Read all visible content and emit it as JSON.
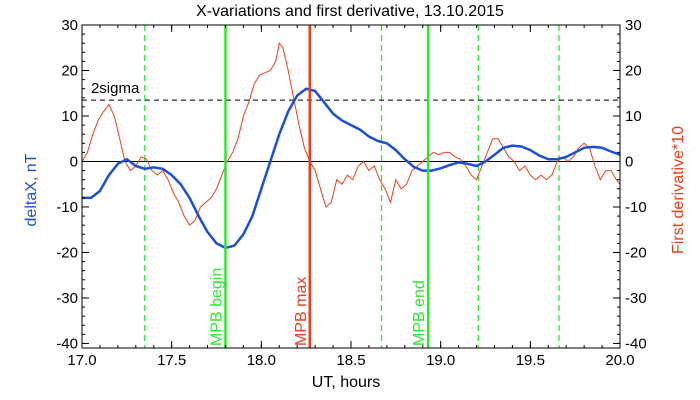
{
  "chart_data": {
    "type": "line",
    "title": "X-variations and first derivative, 13.10.2015",
    "xlabel": "UT, hours",
    "ylabel_left": "deltaX, nT",
    "ylabel_right": "First derivative*10",
    "xlim": [
      17.0,
      20.0
    ],
    "ylim": [
      -41,
      30
    ],
    "xticks": [
      17.0,
      17.5,
      18.0,
      18.5,
      19.0,
      19.5,
      20.0
    ],
    "yticks": [
      30,
      20,
      10,
      0,
      -10,
      -20,
      -30,
      -40
    ],
    "colors": {
      "deltaX": "#1a4fd8",
      "derivative": "#e8401c",
      "green": "#2ee82e",
      "red": "#e8401c",
      "axis": "#000000"
    },
    "series": [
      {
        "key": "deltaX",
        "points": [
          [
            17.0,
            -8
          ],
          [
            17.05,
            -8
          ],
          [
            17.1,
            -6.5
          ],
          [
            17.15,
            -3
          ],
          [
            17.2,
            -0.5
          ],
          [
            17.25,
            0.5
          ],
          [
            17.3,
            -1
          ],
          [
            17.35,
            -1.6
          ],
          [
            17.4,
            -1.3
          ],
          [
            17.45,
            -1.6
          ],
          [
            17.5,
            -3
          ],
          [
            17.55,
            -5
          ],
          [
            17.6,
            -8
          ],
          [
            17.65,
            -12
          ],
          [
            17.7,
            -15.5
          ],
          [
            17.75,
            -18
          ],
          [
            17.8,
            -19
          ],
          [
            17.85,
            -18.5
          ],
          [
            17.9,
            -16
          ],
          [
            17.95,
            -12
          ],
          [
            18.0,
            -6
          ],
          [
            18.05,
            0
          ],
          [
            18.1,
            6
          ],
          [
            18.15,
            11
          ],
          [
            18.2,
            14.5
          ],
          [
            18.25,
            16
          ],
          [
            18.3,
            15.5
          ],
          [
            18.35,
            13
          ],
          [
            18.4,
            10.5
          ],
          [
            18.45,
            9
          ],
          [
            18.5,
            8
          ],
          [
            18.55,
            7
          ],
          [
            18.6,
            5.5
          ],
          [
            18.65,
            4.5
          ],
          [
            18.7,
            4
          ],
          [
            18.75,
            2.5
          ],
          [
            18.8,
            0.5
          ],
          [
            18.85,
            -1.2
          ],
          [
            18.9,
            -2
          ],
          [
            18.95,
            -2
          ],
          [
            19.0,
            -1.5
          ],
          [
            19.05,
            -0.8
          ],
          [
            19.1,
            -0.2
          ],
          [
            19.15,
            -0.5
          ],
          [
            19.2,
            -1
          ],
          [
            19.25,
            0
          ],
          [
            19.3,
            1.5
          ],
          [
            19.35,
            3
          ],
          [
            19.4,
            3.5
          ],
          [
            19.45,
            3.3
          ],
          [
            19.5,
            2.5
          ],
          [
            19.55,
            1.3
          ],
          [
            19.6,
            0.5
          ],
          [
            19.65,
            0.5
          ],
          [
            19.7,
            1
          ],
          [
            19.75,
            2
          ],
          [
            19.8,
            3
          ],
          [
            19.85,
            3.2
          ],
          [
            19.9,
            3
          ],
          [
            19.95,
            2.2
          ],
          [
            20.0,
            1.5
          ]
        ]
      },
      {
        "key": "derivative",
        "points": [
          [
            17.0,
            0
          ],
          [
            17.03,
            2
          ],
          [
            17.06,
            6
          ],
          [
            17.09,
            9
          ],
          [
            17.12,
            11
          ],
          [
            17.15,
            12.5
          ],
          [
            17.18,
            10
          ],
          [
            17.21,
            5
          ],
          [
            17.24,
            0
          ],
          [
            17.27,
            -2
          ],
          [
            17.3,
            -1
          ],
          [
            17.33,
            1
          ],
          [
            17.36,
            0.5
          ],
          [
            17.39,
            -2
          ],
          [
            17.42,
            -3
          ],
          [
            17.45,
            -2
          ],
          [
            17.48,
            -4
          ],
          [
            17.51,
            -7
          ],
          [
            17.54,
            -9
          ],
          [
            17.57,
            -12
          ],
          [
            17.6,
            -14
          ],
          [
            17.63,
            -13
          ],
          [
            17.66,
            -10
          ],
          [
            17.69,
            -9
          ],
          [
            17.72,
            -8
          ],
          [
            17.75,
            -6
          ],
          [
            17.78,
            -3
          ],
          [
            17.81,
            0
          ],
          [
            17.84,
            2
          ],
          [
            17.87,
            5
          ],
          [
            17.9,
            10
          ],
          [
            17.93,
            13
          ],
          [
            17.96,
            17
          ],
          [
            17.99,
            19
          ],
          [
            18.02,
            19.5
          ],
          [
            18.05,
            20
          ],
          [
            18.08,
            22
          ],
          [
            18.1,
            26
          ],
          [
            18.12,
            25
          ],
          [
            18.15,
            20
          ],
          [
            18.18,
            14
          ],
          [
            18.21,
            8
          ],
          [
            18.24,
            3
          ],
          [
            18.27,
            0
          ],
          [
            18.3,
            -2
          ],
          [
            18.33,
            -6
          ],
          [
            18.36,
            -10
          ],
          [
            18.39,
            -9
          ],
          [
            18.42,
            -4
          ],
          [
            18.45,
            -5
          ],
          [
            18.48,
            -3
          ],
          [
            18.51,
            -4
          ],
          [
            18.54,
            -1
          ],
          [
            18.57,
            0
          ],
          [
            18.6,
            -2
          ],
          [
            18.63,
            -1
          ],
          [
            18.66,
            -4
          ],
          [
            18.69,
            -6
          ],
          [
            18.72,
            -9
          ],
          [
            18.75,
            -4
          ],
          [
            18.78,
            -6
          ],
          [
            18.81,
            -5
          ],
          [
            18.84,
            -2
          ],
          [
            18.87,
            -1
          ],
          [
            18.9,
            0
          ],
          [
            18.93,
            1
          ],
          [
            18.96,
            2
          ],
          [
            18.99,
            1.5
          ],
          [
            19.02,
            2
          ],
          [
            19.05,
            2
          ],
          [
            19.08,
            1
          ],
          [
            19.11,
            0.5
          ],
          [
            19.14,
            -1
          ],
          [
            19.17,
            -3
          ],
          [
            19.2,
            -4
          ],
          [
            19.23,
            -1
          ],
          [
            19.26,
            2
          ],
          [
            19.29,
            5
          ],
          [
            19.32,
            5
          ],
          [
            19.35,
            3
          ],
          [
            19.38,
            1
          ],
          [
            19.41,
            0
          ],
          [
            19.44,
            -2
          ],
          [
            19.47,
            -1
          ],
          [
            19.5,
            -3
          ],
          [
            19.53,
            -4
          ],
          [
            19.56,
            -3
          ],
          [
            19.59,
            -4
          ],
          [
            19.62,
            -3
          ],
          [
            19.65,
            0
          ],
          [
            19.68,
            1
          ],
          [
            19.71,
            0
          ],
          [
            19.74,
            1
          ],
          [
            19.77,
            3
          ],
          [
            19.8,
            4
          ],
          [
            19.83,
            3
          ],
          [
            19.86,
            -1
          ],
          [
            19.89,
            -4
          ],
          [
            19.92,
            -2
          ],
          [
            19.95,
            -2
          ],
          [
            19.98,
            -4
          ],
          [
            20.0,
            -5
          ]
        ]
      }
    ],
    "threshold": {
      "label": "2sigma",
      "value": 13.5
    },
    "zero_line": 0,
    "vlines_dashed": [
      17.35,
      17.8,
      18.67,
      18.93,
      19.21,
      19.66
    ],
    "vlines_solid": [
      {
        "x": 17.8,
        "label": "MPB begin",
        "color_key": "green"
      },
      {
        "x": 18.27,
        "label": "MPB max",
        "color_key": "red"
      },
      {
        "x": 18.93,
        "label": "MPB end",
        "color_key": "green"
      }
    ]
  }
}
